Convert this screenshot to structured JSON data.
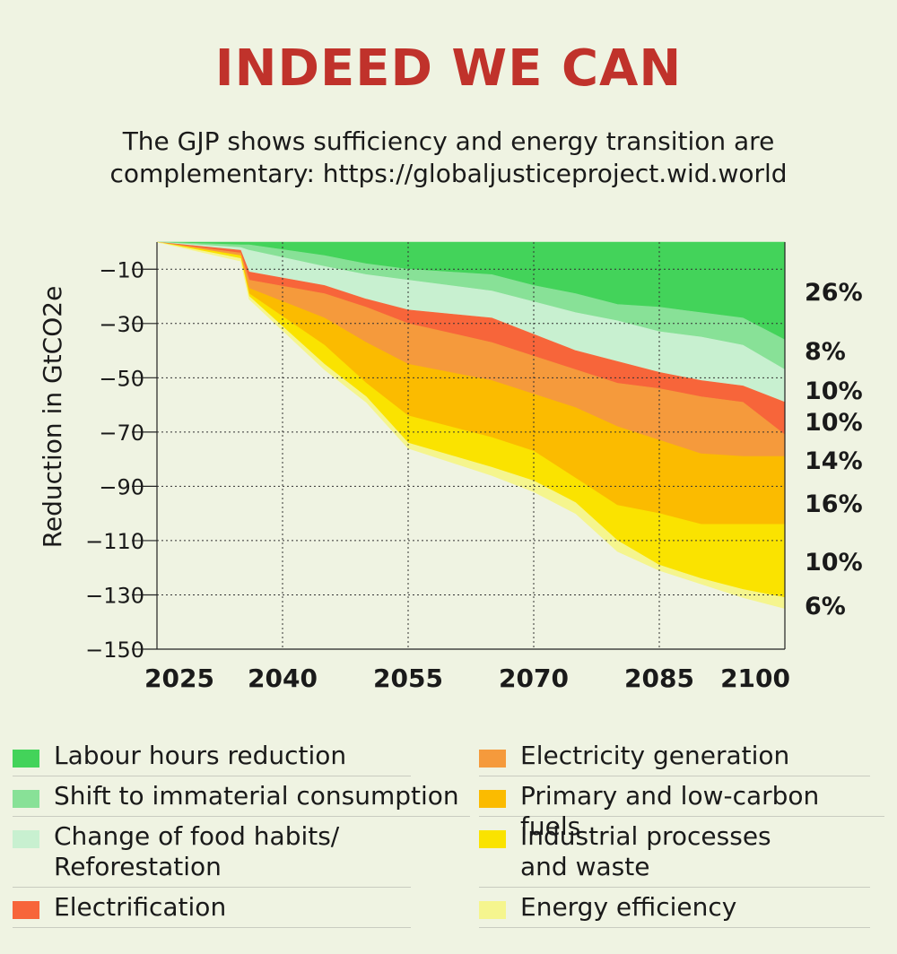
{
  "header": {
    "title": "INDEED WE CAN",
    "subtitle": "The GJP shows sufficiency and energy transition are complementary: https://globaljusticeproject.wid.world"
  },
  "chart_data": {
    "type": "area",
    "ylabel": "Reduction in GtCO2e",
    "xlabel": "",
    "x": [
      2025,
      2035,
      2036,
      2045,
      2050,
      2055,
      2065,
      2070,
      2075,
      2080,
      2085,
      2090,
      2095,
      2100
    ],
    "xticks": [
      2025,
      2040,
      2055,
      2070,
      2085,
      2100
    ],
    "yticks": [
      -10,
      -30,
      -50,
      -70,
      -90,
      -110,
      -130,
      -150
    ],
    "xlim": [
      2025,
      2100
    ],
    "ylim": [
      -150,
      0
    ],
    "grid": "dotted vertical and horizontal lines",
    "series": [
      {
        "name": "Labour hours reduction",
        "color": "#43d35a",
        "share": "26%",
        "values": [
          0,
          -1,
          -1,
          -5,
          -8,
          -10,
          -12,
          -16,
          -19,
          -23,
          -24,
          -26,
          -28,
          -36
        ]
      },
      {
        "name": "Shift to immaterial consumption",
        "color": "#88e197",
        "share": "8%",
        "values": [
          0,
          -2,
          -3,
          -9,
          -12,
          -14,
          -18,
          -22,
          -26,
          -29,
          -33,
          -35,
          -38,
          -47
        ]
      },
      {
        "name": "Change of food habits/\nReforestation",
        "color": "#c8f0d0",
        "share": "10%",
        "values": [
          0,
          -3,
          -11,
          -16,
          -21,
          -25,
          -28,
          -34,
          -40,
          -44,
          -48,
          -51,
          -53,
          -59
        ]
      },
      {
        "name": "Electrification",
        "color": "#f7653a",
        "share": "10%",
        "values": [
          0,
          -4,
          -14,
          -19,
          -24,
          -30,
          -37,
          -42,
          -47,
          -52,
          -54,
          -57,
          -59,
          -71
        ]
      },
      {
        "name": "Electricity generation",
        "color": "#f59a3c",
        "share": "14%",
        "values": [
          0,
          -5,
          -17,
          -28,
          -37,
          -45,
          -51,
          -56,
          -61,
          -68,
          -73,
          -78,
          -79,
          -79
        ]
      },
      {
        "name": "Primary and low-carbon fuels",
        "color": "#fbbb00",
        "share": "16%",
        "values": [
          0,
          -5,
          -19,
          -38,
          -52,
          -64,
          -72,
          -77,
          -87,
          -97,
          -100,
          -104,
          -104,
          -104
        ]
      },
      {
        "name": "Industrial processes\nand waste",
        "color": "#fae300",
        "share": "10%",
        "values": [
          0,
          -6,
          -20,
          -45,
          -57,
          -74,
          -83,
          -88,
          -96,
          -110,
          -119,
          -124,
          -128,
          -131
        ]
      },
      {
        "name": "Energy efficiency",
        "color": "#f5f58e",
        "share": "6%",
        "values": [
          0,
          -7,
          -21,
          -47,
          -59,
          -76,
          -86,
          -92,
          -100,
          -114,
          -121,
          -126,
          -131,
          -135
        ]
      }
    ]
  }
}
